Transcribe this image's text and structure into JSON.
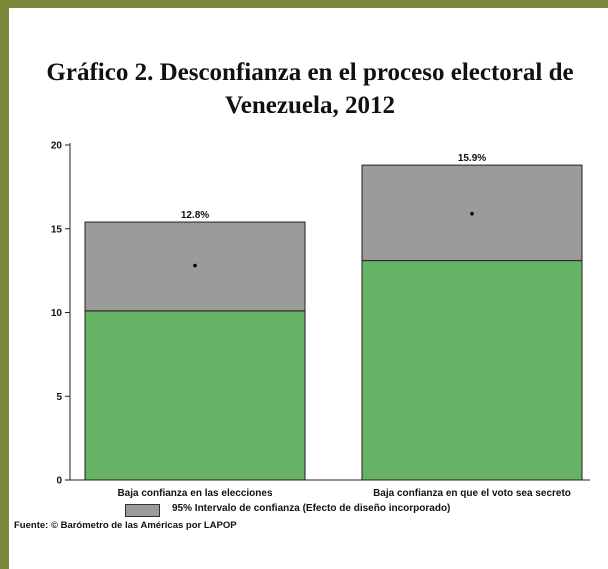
{
  "title": "Gráfico 2. Desconfianza en el proceso electoral de Venezuela, 2012",
  "legend": {
    "label": "95% Intervalo de confianza (Efecto de diseño incorporado)"
  },
  "source": "Fuente: © Barómetro de las Américas por LAPOP",
  "colors": {
    "bar": "#67b365",
    "ci": "#9b9b9b",
    "frame": "#7a8a3a"
  },
  "chart_data": {
    "type": "bar",
    "categories": [
      "Baja confianza en las elecciones",
      "Baja confianza en que el voto sea secreto"
    ],
    "values": [
      12.8,
      15.9
    ],
    "labels": [
      "12.8%",
      "15.9%"
    ],
    "ci_low": [
      10.1,
      13.1
    ],
    "ci_high": [
      15.4,
      18.8
    ],
    "ylim": [
      0,
      20
    ],
    "yticks": [
      0,
      5,
      10,
      15,
      20
    ],
    "title": "Gráfico 2. Desconfianza en el proceso electoral de Venezuela, 2012",
    "xlabel": "",
    "ylabel": "",
    "legend": "95% Intervalo de confianza (Efecto de diseño incorporado)"
  }
}
